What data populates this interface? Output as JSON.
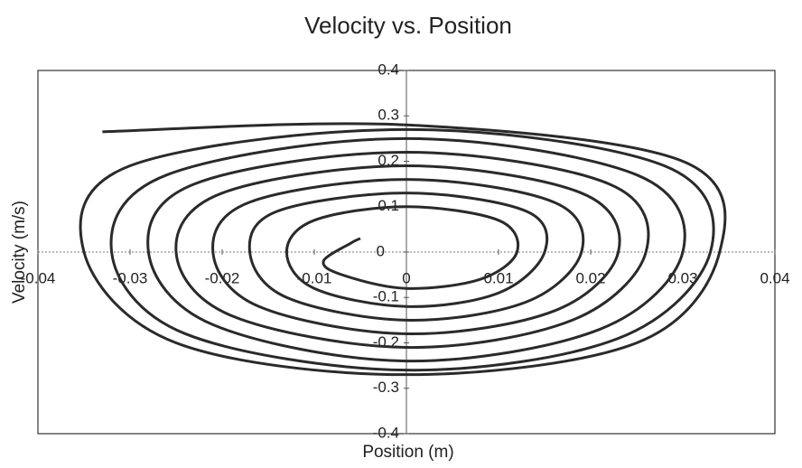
{
  "chart_data": {
    "type": "line",
    "title": "Velocity vs. Position",
    "x_label": "Position (m)",
    "y_label": "Velocity (m/s)",
    "xlim": [
      -0.04,
      0.04
    ],
    "ylim": [
      -0.4,
      0.4
    ],
    "xticks": [
      -0.04,
      -0.03,
      -0.02,
      -0.01,
      0,
      0.01,
      0.02,
      0.03,
      0.04
    ],
    "yticks": [
      -0.4,
      -0.3,
      -0.2,
      -0.1,
      0,
      0.1,
      0.2,
      0.3,
      0.4
    ],
    "series": [
      {
        "color": "#2a2a2a",
        "x": [
          -0.033,
          0,
          0.03,
          0.034,
          0.025,
          0,
          -0.025,
          -0.035,
          -0.03,
          0,
          0.028,
          0.033,
          0.023,
          0,
          -0.024,
          -0.032,
          -0.026,
          0,
          0.025,
          0.03,
          0.021,
          0,
          -0.021,
          -0.028,
          -0.023,
          0,
          0.022,
          0.026,
          0.018,
          0,
          -0.019,
          -0.025,
          -0.02,
          0,
          0.019,
          0.023,
          0.016,
          0,
          -0.016,
          -0.021,
          -0.017,
          0,
          0.016,
          0.019,
          0.013,
          0,
          -0.013,
          -0.017,
          -0.014,
          0,
          0.013,
          0.015,
          0.01,
          0,
          -0.01,
          -0.013,
          -0.01,
          0,
          0.01,
          0.012,
          0.008,
          0,
          -0.007,
          -0.009,
          -0.006,
          -0.005
        ],
        "values": [
          0.265,
          0.28,
          0.2,
          0,
          -0.2,
          -0.27,
          -0.2,
          0,
          0.19,
          0.27,
          0.19,
          0,
          -0.19,
          -0.26,
          -0.18,
          0,
          0.17,
          0.25,
          0.17,
          0,
          -0.17,
          -0.24,
          -0.16,
          0,
          0.15,
          0.22,
          0.15,
          0,
          -0.15,
          -0.21,
          -0.14,
          0,
          0.13,
          0.19,
          0.13,
          0,
          -0.13,
          -0.18,
          -0.12,
          0,
          0.11,
          0.16,
          0.11,
          0,
          -0.11,
          -0.15,
          -0.1,
          0,
          0.09,
          0.13,
          0.09,
          0,
          -0.09,
          -0.12,
          -0.08,
          0,
          0.07,
          0.1,
          0.07,
          0,
          -0.06,
          -0.08,
          -0.05,
          -0.02,
          0.02,
          0.03
        ]
      }
    ]
  }
}
